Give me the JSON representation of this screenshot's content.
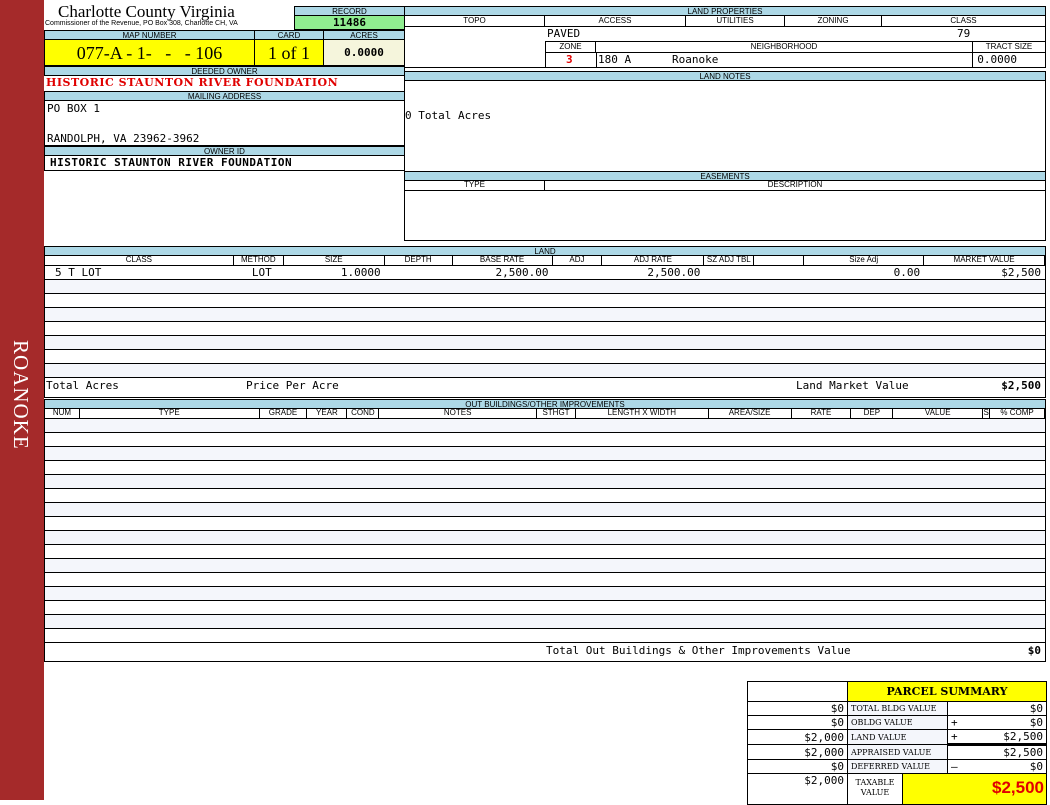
{
  "side_label": "ROANOKE",
  "header": {
    "title": "Charlotte County Virginia",
    "subtitle": "Commissioner of the Revenue, PO Box 308, Charlotte CH, VA",
    "record_label": "RECORD",
    "record": "11486"
  },
  "parcel": {
    "map_label": "MAP NUMBER",
    "map": "077-A - 1-   -   - 106",
    "card_label": "CARD",
    "card": "1 of 1",
    "acres_label": "ACRES",
    "acres": "0.0000"
  },
  "owner": {
    "deeded_label": "DEEDED OWNER",
    "deeded": "HISTORIC STAUNTON RIVER FOUNDATION",
    "mailing_label": "MAILING ADDRESS",
    "address1": "PO BOX 1",
    "address2": "RANDOLPH, VA 23962-3962",
    "owner_id_label": "OWNER ID",
    "owner_id": "HISTORIC STAUNTON RIVER FOUNDATION"
  },
  "land_props": {
    "title": "LAND PROPERTIES",
    "topo": "TOPO",
    "access": "ACCESS",
    "utilities": "UTILITIES",
    "zoning": "ZONING",
    "class": "CLASS",
    "access_val": "PAVED",
    "class_val": "79",
    "zone_label": "ZONE",
    "neigh_label": "NEIGHBORHOOD",
    "tract_label": "TRACT SIZE",
    "zone": "3",
    "neigh_code": "180 A",
    "neigh": "Roanoke",
    "tract": "0.0000"
  },
  "land_notes": {
    "title": "LAND NOTES",
    "text": "0 Total Acres"
  },
  "easements": {
    "title": "EASEMENTS",
    "type": "TYPE",
    "description": "DESCRIPTION"
  },
  "land": {
    "title": "LAND",
    "columns": [
      "CLASS",
      "METHOD",
      "SIZE",
      "DEPTH",
      "BASE RATE",
      "ADJ",
      "ADJ RATE",
      "SZ ADJ TBL",
      "",
      "Size Adj",
      "MARKET VALUE"
    ],
    "rows": [
      [
        "5 T LOT",
        "LOT",
        "1.0000",
        "",
        "2,500.00",
        "",
        "2,500.00",
        "",
        "",
        "0.00",
        "$2,500"
      ]
    ],
    "total_acres_label": "Total Acres",
    "price_per_acre_label": "Price Per Acre",
    "market_label": "Land Market Value",
    "market_value": "$2,500"
  },
  "outbuildings": {
    "title": "OUT BUILDINGS/OTHER IMPROVEMENTS",
    "columns": [
      "NUM",
      "TYPE",
      "GRADE",
      "YEAR",
      "COND",
      "NOTES",
      "STHGT",
      "LENGTH X WIDTH",
      "AREA/SIZE",
      "RATE",
      "DEP",
      "VALUE",
      "S",
      "% COMP"
    ],
    "total_label": "Total Out Buildings & Other Improvements Value",
    "total": "$0"
  },
  "summary": {
    "title": "PARCEL SUMMARY",
    "rows": [
      {
        "prior": "$0",
        "label": "TOTAL BLDG VALUE",
        "op": "",
        "value": "$0"
      },
      {
        "prior": "$0",
        "label": "OBLDG VALUE",
        "op": "+",
        "value": "$0"
      },
      {
        "prior": "$2,000",
        "label": "LAND VALUE",
        "op": "+",
        "value": "$2,500"
      },
      {
        "prior": "$2,000",
        "label": "APPRAISED VALUE",
        "op": "",
        "value": "$2,500"
      },
      {
        "prior": "$0",
        "label": "DEFERRED VALUE",
        "op": "–",
        "value": "$0"
      }
    ],
    "taxable_prior": "$2,000",
    "taxable_label": "TAXABLE VALUE",
    "taxable": "$2,500"
  },
  "colors": {
    "side": "#a52a2a",
    "header": "#add8e6",
    "highlight": "#ffff00",
    "record": "#90ee90",
    "owner_red": "#e00000"
  }
}
